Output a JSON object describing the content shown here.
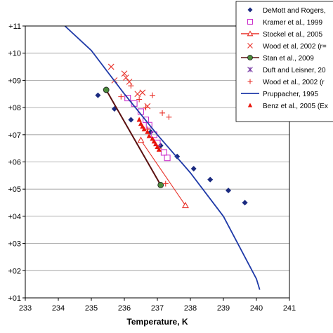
{
  "chart_data": {
    "type": "scatter",
    "xlabel": "Temperature, K",
    "ylabel": "",
    "xlim": [
      233,
      241
    ],
    "ylim": [
      1,
      11
    ],
    "log_y": true,
    "x_ticks": [
      "233",
      "234",
      "235",
      "236",
      "237",
      "238",
      "239",
      "240",
      "241"
    ],
    "y_ticks": [
      "+01",
      "+02",
      "+03",
      "+04",
      "+05",
      "+06",
      "+07",
      "+08",
      "+09",
      "+10",
      "+11"
    ],
    "grid": "horizontal",
    "legend_position": "top-right",
    "series": [
      {
        "name": "DeMott and Rogers,",
        "marker": "diamond",
        "color": "#1a2a80",
        "points": [
          [
            235.2,
            8.45
          ],
          [
            235.7,
            7.95
          ],
          [
            236.2,
            7.55
          ],
          [
            236.8,
            7.1
          ],
          [
            237.1,
            6.6
          ],
          [
            237.6,
            6.2
          ],
          [
            238.1,
            5.75
          ],
          [
            238.6,
            5.35
          ],
          [
            239.15,
            4.95
          ],
          [
            239.65,
            4.5
          ]
        ]
      },
      {
        "name": "Kramer et al., 1999",
        "marker": "open-square",
        "color": "#cc33cc",
        "points": [
          [
            236.1,
            8.35
          ],
          [
            236.3,
            8.15
          ],
          [
            236.5,
            7.85
          ],
          [
            236.65,
            7.55
          ],
          [
            236.75,
            7.35
          ],
          [
            236.9,
            7.0
          ],
          [
            237.0,
            6.7
          ],
          [
            237.2,
            6.35
          ],
          [
            237.3,
            6.15
          ]
        ]
      },
      {
        "name": "Stockel et al., 2005",
        "marker": "open-triangle-line",
        "color": "#e8322a",
        "points": [
          [
            236.5,
            6.8
          ],
          [
            237.85,
            4.4
          ]
        ]
      },
      {
        "name": "Wood et al, 2002 (r=",
        "marker": "x",
        "color": "#e8322a",
        "points": [
          [
            235.6,
            9.5
          ],
          [
            235.7,
            9.0
          ],
          [
            236.0,
            9.25
          ],
          [
            236.05,
            9.1
          ],
          [
            236.15,
            8.95
          ],
          [
            236.4,
            8.5
          ],
          [
            236.55,
            8.55
          ],
          [
            236.7,
            8.05
          ]
        ]
      },
      {
        "name": "Stan et al., 2009",
        "marker": "circle-line",
        "color": "#5a1010",
        "fill": "#4c8c3c",
        "points": [
          [
            235.45,
            8.65
          ],
          [
            237.1,
            5.15
          ]
        ]
      },
      {
        "name": "Duft and Leisner, 20",
        "marker": "asterisk",
        "color": "#7030a0",
        "points": []
      },
      {
        "name": "Wood et al., 2002 (r",
        "marker": "plus",
        "color": "#e8322a",
        "points": [
          [
            235.9,
            8.4
          ],
          [
            236.2,
            8.8
          ],
          [
            236.45,
            8.3
          ],
          [
            236.65,
            8.0
          ],
          [
            236.85,
            8.45
          ],
          [
            237.15,
            7.8
          ],
          [
            237.35,
            7.65
          ],
          [
            236.7,
            7.2
          ],
          [
            237.05,
            6.5
          ],
          [
            237.25,
            5.2
          ]
        ]
      },
      {
        "name": "Pruppacher, 1995",
        "marker": "line",
        "color": "#1f3aa8",
        "points": [
          [
            234.2,
            11.0
          ],
          [
            235.0,
            10.1
          ],
          [
            236.0,
            8.5
          ],
          [
            237.0,
            7.0
          ],
          [
            238.0,
            5.6
          ],
          [
            239.0,
            4.0
          ],
          [
            240.0,
            1.7
          ],
          [
            240.1,
            1.3
          ]
        ]
      },
      {
        "name": "Benz et al., 2005 (Ex",
        "marker": "triangle",
        "color": "#e8140a",
        "points": [
          [
            236.45,
            7.55
          ],
          [
            236.5,
            7.4
          ],
          [
            236.55,
            7.3
          ],
          [
            236.6,
            7.2
          ],
          [
            236.7,
            7.1
          ],
          [
            236.75,
            6.95
          ],
          [
            236.85,
            6.85
          ],
          [
            236.9,
            6.75
          ],
          [
            236.95,
            6.65
          ],
          [
            237.0,
            6.55
          ],
          [
            237.05,
            6.45
          ]
        ]
      }
    ]
  }
}
